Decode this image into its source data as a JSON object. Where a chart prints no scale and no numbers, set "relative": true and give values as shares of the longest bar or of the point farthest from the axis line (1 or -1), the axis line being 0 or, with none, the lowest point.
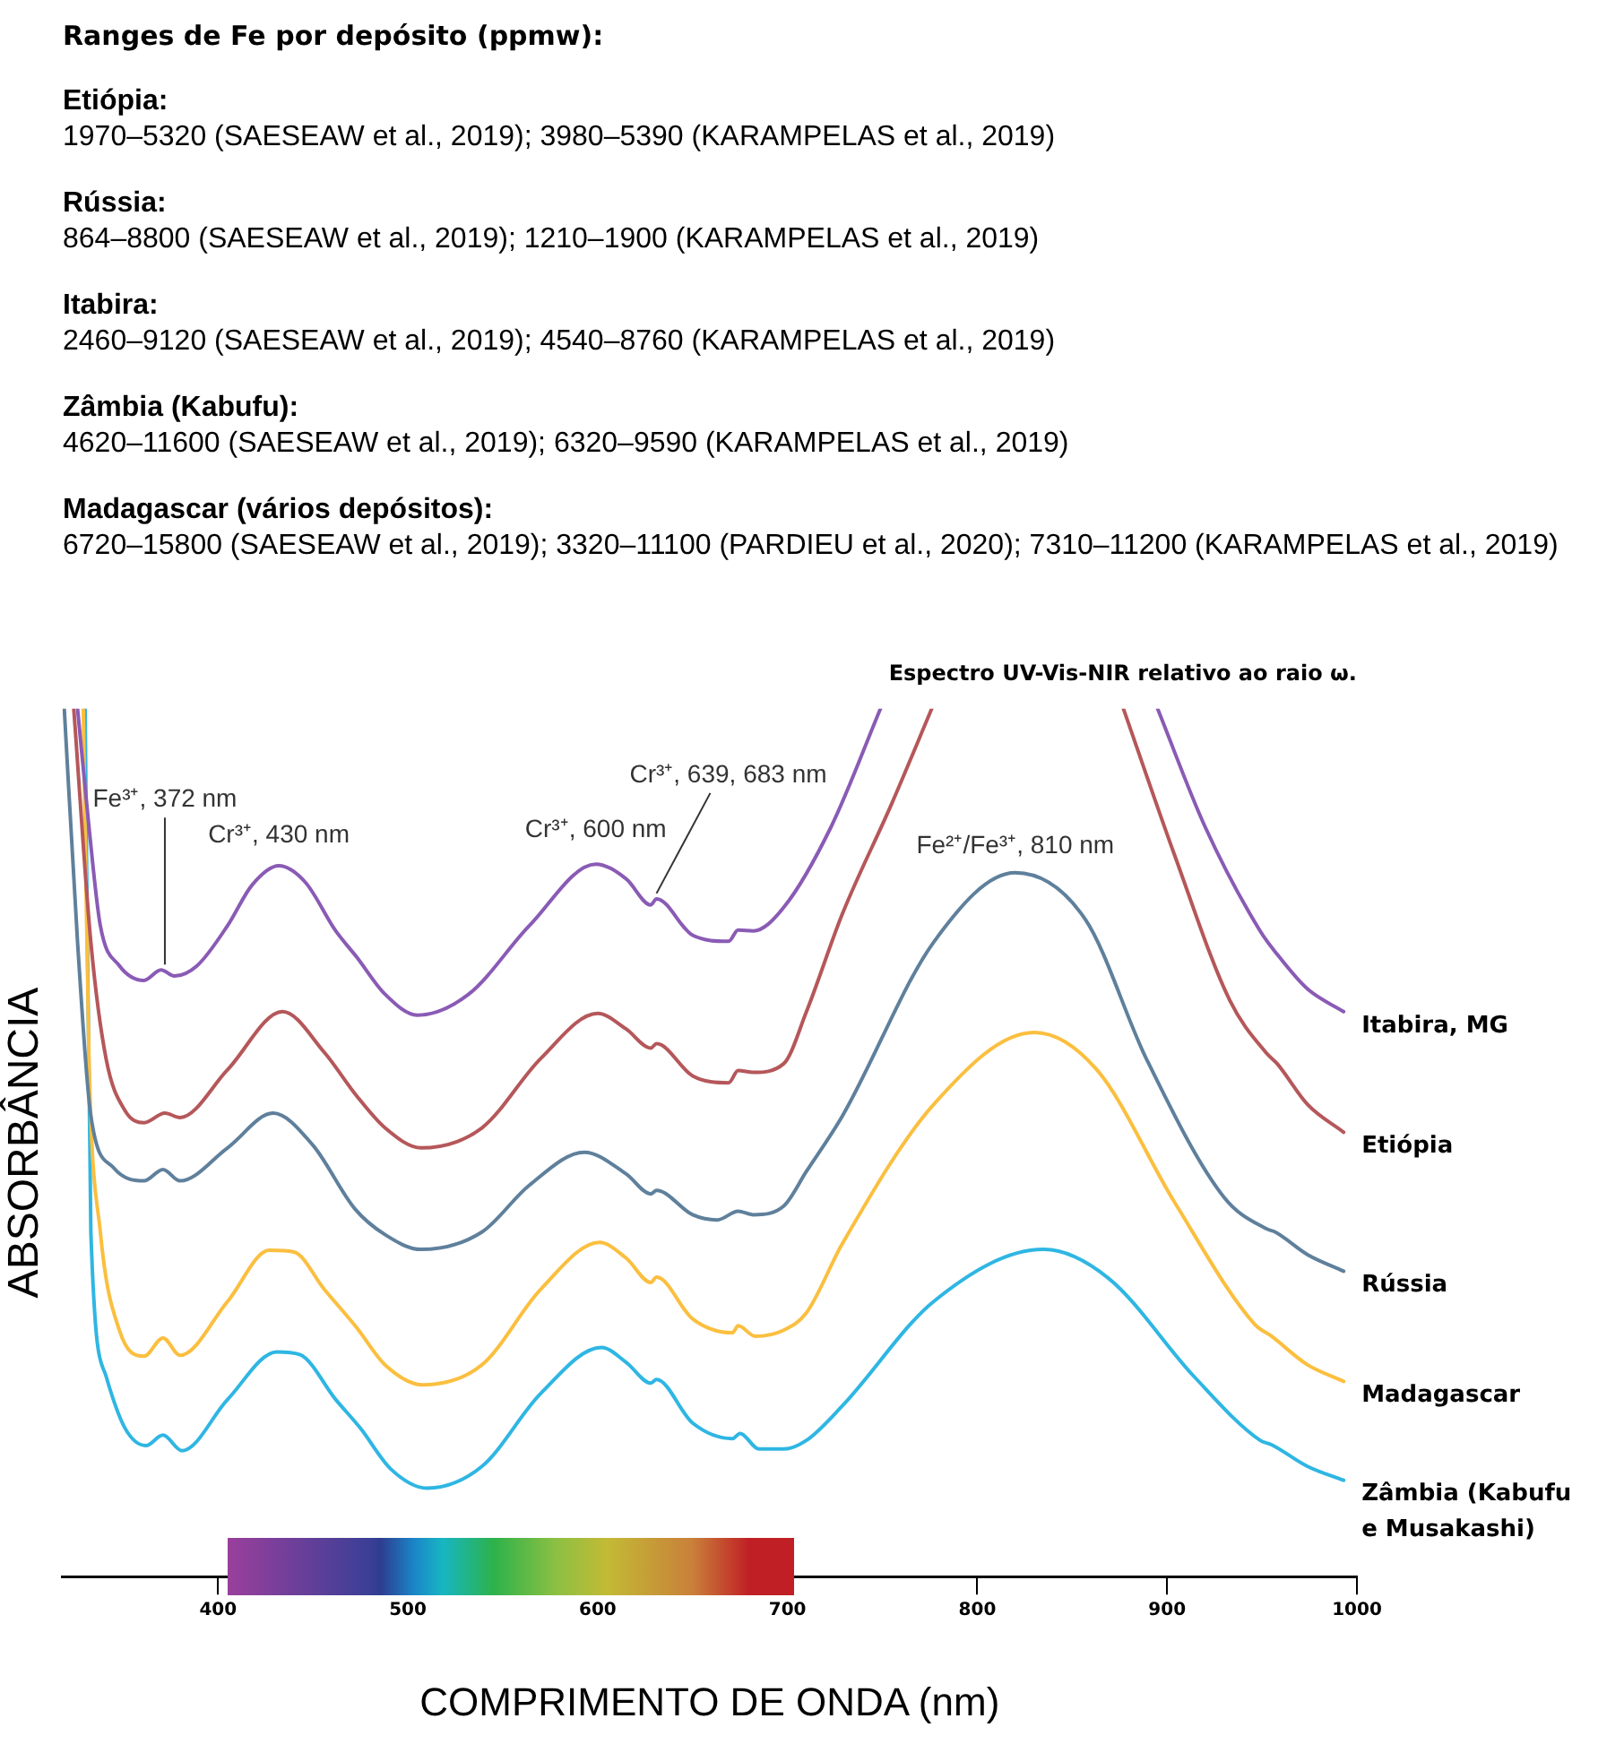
{
  "chart_data": {
    "type": "line",
    "title": "Espectro UV-Vis-NIR relativo ao raio ω.",
    "xlabel": "COMPRIMENTO DE ONDA (nm)",
    "ylabel": "ABSORBÂNCIA",
    "relative": true,
    "marker": "none",
    "line_style": "solid",
    "xlim": [
      318,
      1000
    ],
    "xticks": [
      400,
      500,
      600,
      700,
      800,
      900,
      1000
    ],
    "annotations": [
      "Ranges de Fe por depósito (ppmw):",
      "Etiópia:",
      "1970–5320 (SAESEAW et al., 2019); 3980–5390 (KARAMPELAS et al., 2019)",
      "Rússia:",
      "864–8800 (SAESEAW et al., 2019); 1210–1900 (KARAMPELAS et al., 2019)",
      "Itabira:",
      "2460–9120 (SAESEAW et al., 2019); 4540–8760 (KARAMPELAS et al., 2019)",
      "Zâmbia (Kabufu):",
      "4620–11600 (SAESEAW et al., 2019); 6320–9590 (KARAMPELAS et al., 2019)",
      "Madagascar (vários depósitos):",
      "6720–15800 (SAESEAW et al., 2019); 3320–11100 (PARDIEU et al., 2020); 7310–11200 (KARAMPELAS et al., 2019)",
      {
        "text": "Fe³⁺, 372 nm",
        "x": 372,
        "y": 0.699
      },
      {
        "text": "Cr³⁺, 430 nm",
        "x": 432,
        "y": 0.819
      },
      {
        "text": "Cr³⁺, 600 nm",
        "x": 599,
        "y": 0.821
      },
      {
        "text": "Cr³⁺, 639, 683 nm",
        "x": 631,
        "y": 0.781
      },
      {
        "text": "Fe²⁺/Fe³⁺, 810 nm",
        "x": 820,
        "y": 0.811
      }
    ],
    "series": [
      {
        "name": "Itabira, MG",
        "type": "line",
        "color": "#8a5bb5",
        "x": [
          326,
          332,
          338,
          348,
          361,
          370,
          377,
          389,
          405,
          418,
          432,
          446,
          462,
          473,
          488,
          505,
          532,
          564,
          599,
          615,
          628,
          631,
          650,
          669,
          674,
          682,
          698,
          723,
          749,
          822,
          895,
          920,
          949,
          958,
          974,
          993
        ],
        "values": [
          1,
          0.864,
          0.75,
          0.704,
          0.687,
          0.699,
          0.692,
          0.704,
          0.75,
          0.797,
          0.819,
          0.8,
          0.744,
          0.714,
          0.671,
          0.647,
          0.671,
          0.75,
          0.821,
          0.804,
          0.774,
          0.781,
          0.739,
          0.732,
          0.745,
          0.744,
          0.771,
          0.864,
          1,
          null,
          1,
          0.864,
          0.744,
          0.717,
          0.677,
          0.651
        ]
      },
      {
        "name": "Etiópia",
        "type": "line",
        "color": "#b5575a",
        "x": [
          324,
          333,
          341,
          351,
          361,
          372,
          380,
          405,
          434,
          456,
          473,
          488,
          507,
          539,
          570,
          600,
          615,
          628,
          631,
          650,
          669,
          674,
          682,
          698,
          710,
          729,
          755,
          776,
          826,
          877,
          904,
          933,
          952,
          958,
          974,
          993
        ],
        "values": [
          1,
          0.731,
          0.597,
          0.537,
          0.523,
          0.534,
          0.529,
          0.584,
          0.651,
          0.604,
          0.554,
          0.517,
          0.494,
          0.517,
          0.597,
          0.649,
          0.631,
          0.609,
          0.614,
          0.577,
          0.569,
          0.583,
          0.581,
          0.591,
          0.651,
          0.764,
          0.891,
          1,
          null,
          1,
          0.831,
          0.664,
          0.604,
          0.591,
          0.544,
          0.512
        ]
      },
      {
        "name": "Rússia",
        "type": "line",
        "color": "#5f809c",
        "x": [
          319,
          326,
          333,
          345,
          361,
          371,
          380,
          405,
          429,
          450,
          472,
          488,
          507,
          539,
          564,
          593,
          615,
          628,
          631,
          650,
          663,
          674,
          682,
          698,
          710,
          729,
          777,
          820,
          857,
          889,
          930,
          952,
          957,
          974,
          993
        ],
        "values": [
          1,
          0.731,
          0.531,
          0.471,
          0.456,
          0.469,
          0.456,
          0.494,
          0.534,
          0.497,
          0.424,
          0.394,
          0.377,
          0.397,
          0.451,
          0.489,
          0.464,
          0.441,
          0.445,
          0.417,
          0.411,
          0.421,
          0.417,
          0.427,
          0.467,
          0.531,
          0.731,
          0.811,
          0.757,
          0.597,
          0.437,
          0.401,
          0.397,
          0.371,
          0.352
        ]
      },
      {
        "name": "Madagascar",
        "type": "line",
        "color": "#fbbf3f",
        "x": [
          329,
          332,
          338,
          348,
          361,
          371,
          380,
          405,
          427,
          440,
          456,
          473,
          488,
          508,
          539,
          570,
          601,
          615,
          628,
          631,
          650,
          671,
          674,
          683,
          698,
          710,
          729,
          777,
          830,
          863,
          904,
          946,
          955,
          974,
          993
        ],
        "values": [
          1,
          0.597,
          0.397,
          0.284,
          0.254,
          0.275,
          0.255,
          0.317,
          0.376,
          0.374,
          0.331,
          0.287,
          0.244,
          0.221,
          0.244,
          0.331,
          0.385,
          0.367,
          0.339,
          0.345,
          0.297,
          0.281,
          0.289,
          0.277,
          0.284,
          0.304,
          0.384,
          0.544,
          0.627,
          0.584,
          0.431,
          0.291,
          0.277,
          0.244,
          0.225
        ]
      },
      {
        "name": "Zâmbia (Kabufu e Musakashi)",
        "type": "line",
        "color": "#2fb6e3",
        "x": [
          330,
          333,
          341,
          351,
          362,
          371,
          381,
          405,
          431,
          443,
          462,
          475,
          491,
          510,
          539,
          570,
          602,
          615,
          628,
          631,
          650,
          671,
          675,
          685,
          698,
          710,
          729,
          777,
          835,
          869,
          914,
          949,
          955,
          974,
          993
        ],
        "values": [
          1,
          0.397,
          0.231,
          0.171,
          0.151,
          0.163,
          0.145,
          0.204,
          0.259,
          0.256,
          0.204,
          0.171,
          0.124,
          0.102,
          0.127,
          0.211,
          0.264,
          0.247,
          0.223,
          0.227,
          0.177,
          0.159,
          0.165,
          0.147,
          0.147,
          0.157,
          0.197,
          0.317,
          0.377,
          0.344,
          0.231,
          0.157,
          0.152,
          0.127,
          0.111
        ]
      }
    ]
  }
}
